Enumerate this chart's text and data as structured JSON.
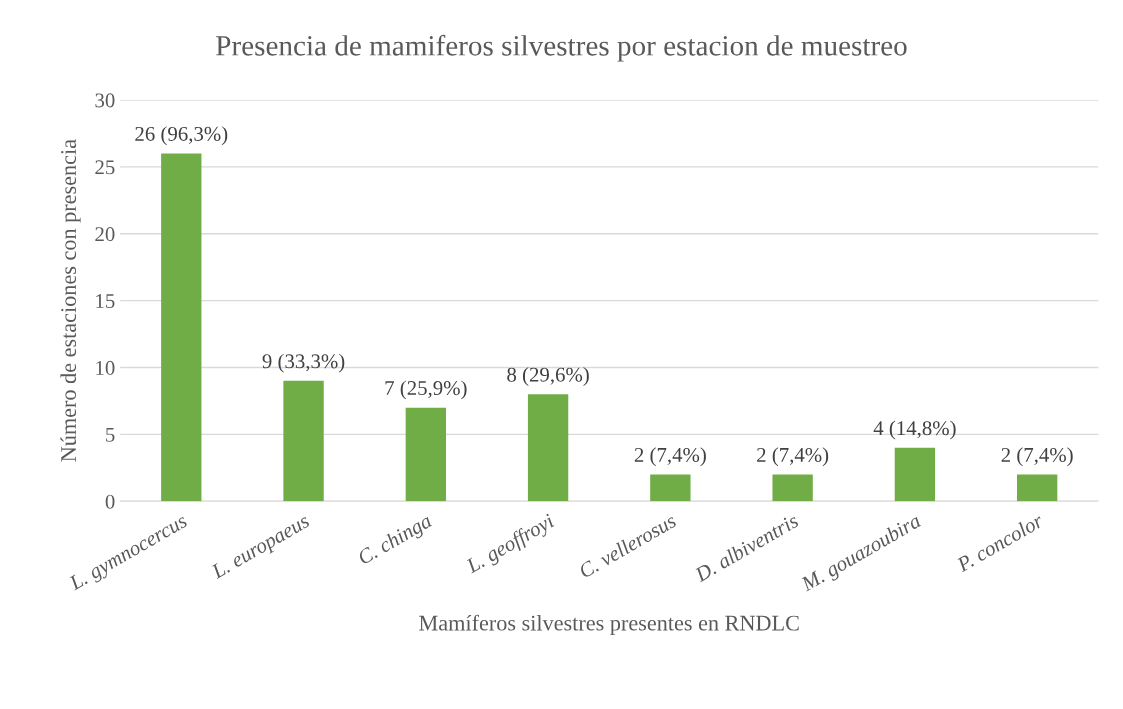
{
  "chart_data": {
    "type": "bar",
    "title": "Presencia de mamiferos silvestres por estacion de muestreo",
    "xlabel": "Mamíferos silvestres presentes en RNDLC",
    "ylabel": "Número de estaciones con presencia",
    "categories": [
      "L. gymnocercus",
      "L. europaeus",
      "C. chinga",
      "L. geoffroyi",
      "C. vellerosus",
      "D. albiventris",
      "M. gouazoubira",
      "P. concolor"
    ],
    "values": [
      26,
      9,
      7,
      8,
      2,
      2,
      4,
      2
    ],
    "value_labels": [
      "26 (96,3%)",
      "9 (33,3%)",
      "7 (25,9%)",
      "8 (29,6%)",
      "2 (7,4%)",
      "2 (7,4%)",
      "4 (14,8%)",
      "2 (7,4%)"
    ],
    "color": "#70ad47",
    "ylim": [
      0,
      30
    ],
    "yticks": [
      0,
      5,
      10,
      15,
      20,
      25,
      30
    ],
    "grid": "y",
    "legend": false
  }
}
